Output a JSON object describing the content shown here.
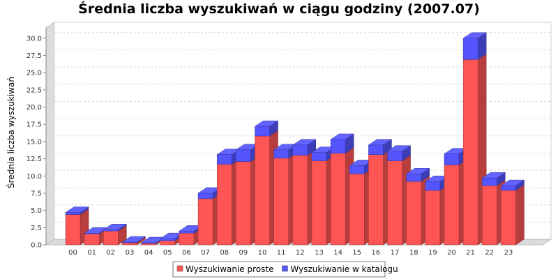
{
  "chart_data": {
    "type": "bar",
    "stacked": true,
    "three_d": true,
    "title": "Średnia liczba wyszukiwań w ciągu godziny (2007.07)",
    "xlabel": "",
    "ylabel": "Średnia liczba wyszukiwań",
    "ylim": [
      0,
      31.5
    ],
    "yticks": [
      "0.0",
      "2.5",
      "5.0",
      "7.5",
      "10.0",
      "12.5",
      "15.0",
      "17.5",
      "20.0",
      "22.5",
      "25.0",
      "27.5",
      "30.0"
    ],
    "grid": true,
    "legend_position": "bottom",
    "categories": [
      "00",
      "01",
      "02",
      "03",
      "04",
      "05",
      "06",
      "07",
      "08",
      "09",
      "10",
      "11",
      "12",
      "13",
      "14",
      "15",
      "16",
      "17",
      "18",
      "19",
      "20",
      "21",
      "22",
      "23"
    ],
    "series": [
      {
        "name": "Wyszukiwanie proste",
        "color": "#ff5555",
        "values": [
          4.4,
          1.6,
          2.0,
          0.3,
          0.2,
          0.6,
          1.7,
          6.7,
          11.7,
          12.1,
          15.8,
          12.6,
          13.0,
          12.2,
          13.3,
          10.3,
          13.1,
          12.2,
          9.2,
          7.9,
          11.6,
          26.9,
          8.6,
          7.9
        ]
      },
      {
        "name": "Wyszukiwanie w katalogu",
        "color": "#5555ff",
        "values": [
          0.3,
          0.1,
          0.2,
          0.1,
          0.1,
          0.3,
          0.3,
          0.8,
          1.4,
          1.7,
          1.4,
          1.2,
          1.5,
          1.2,
          2.0,
          1.2,
          1.4,
          1.4,
          1.1,
          1.3,
          1.6,
          3.1,
          1.1,
          0.7
        ]
      }
    ]
  }
}
